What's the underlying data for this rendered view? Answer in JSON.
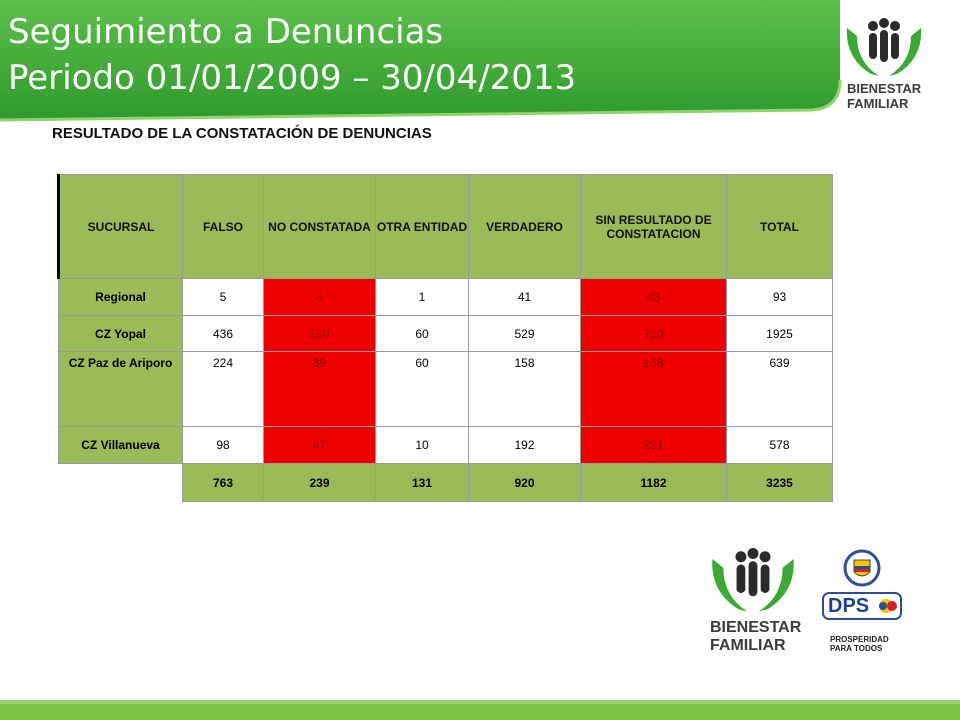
{
  "header": {
    "title_line1": "Seguimiento a Denuncias",
    "title_line2": "Periodo 01/01/2009 – 30/04/2013"
  },
  "subtitle": "RESULTADO DE LA CONSTATACIÓN DE DENUNCIAS",
  "logos": {
    "bienestar_line1": "BIENESTAR",
    "bienestar_line2": "FAMILIAR",
    "dps": "DPS",
    "prosperidad_line1": "PROSPERIDAD",
    "prosperidad_line2": "PARA TODOS"
  },
  "colors": {
    "banner_green": "#3aaa35",
    "header_green": "#9bbb59",
    "highlight_red": "#ee0000"
  },
  "table": {
    "headers": [
      "SUCURSAL",
      "FALSO",
      "NO CONSTATADA",
      "OTRA ENTIDAD",
      "VERDADERO",
      "SIN RESULTADO DE CONSTATACION",
      "TOTAL"
    ],
    "rows": [
      {
        "sucursal": "Regional",
        "values": [
          "5",
          "3",
          "1",
          "41",
          "43",
          "93"
        ]
      },
      {
        "sucursal": "CZ Yopal",
        "values": [
          "436",
          "150",
          "60",
          "529",
          "750",
          "1925"
        ]
      },
      {
        "sucursal": "CZ Paz de Ariporo",
        "values": [
          "224",
          "39",
          "60",
          "158",
          "158",
          "639"
        ]
      },
      {
        "sucursal": "CZ Villanueva",
        "values": [
          "98",
          "47",
          "10",
          "192",
          "231",
          "578"
        ]
      }
    ],
    "totals": [
      "763",
      "239",
      "131",
      "920",
      "1182",
      "3235"
    ]
  }
}
